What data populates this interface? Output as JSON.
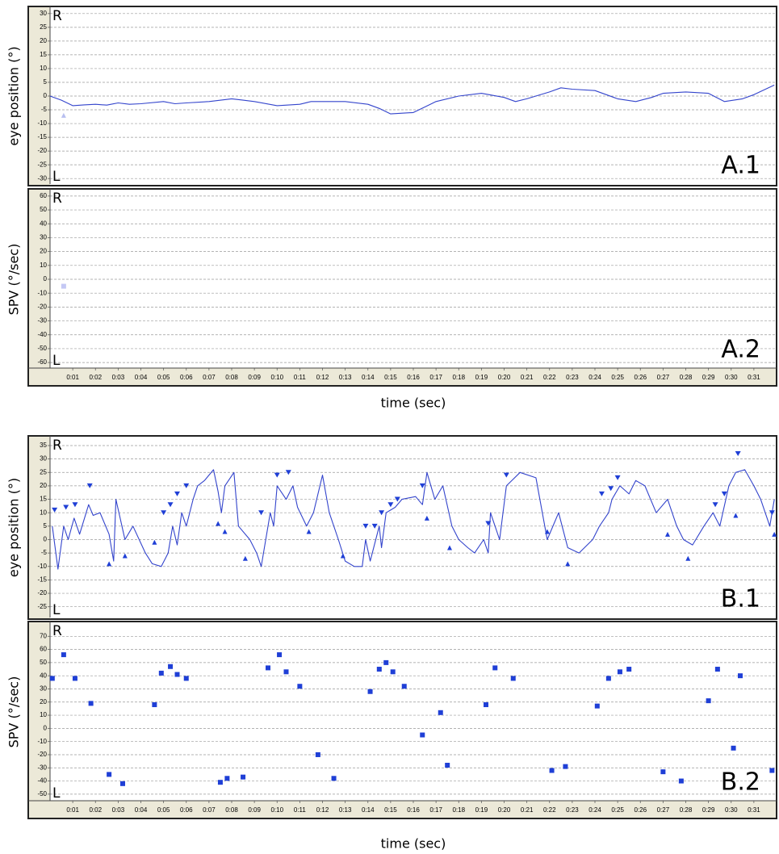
{
  "chart_data": [
    {
      "type": "line",
      "ylabel": "eye position (°)",
      "annotations": {
        "top": "R",
        "bottom": "L",
        "panel": "A.1"
      },
      "xlim": [
        0,
        32
      ],
      "ylim": [
        -32,
        32
      ],
      "yticks": [
        30,
        25,
        20,
        15,
        10,
        5,
        0,
        -5,
        -10,
        -15,
        -20,
        -25,
        -30
      ],
      "grid": true,
      "series": [
        {
          "style": "line",
          "color": "#3344cc",
          "x": [
            0,
            0.5,
            1,
            1.5,
            2,
            2.5,
            3,
            3.5,
            4,
            5,
            5.5,
            6,
            7,
            8,
            8.5,
            9,
            10,
            11,
            11.5,
            12,
            13,
            14,
            14.5,
            15,
            16,
            16.5,
            17,
            18,
            19,
            20,
            20.5,
            21,
            22,
            22.5,
            23,
            24,
            25,
            25.8,
            26.5,
            27,
            28,
            29,
            29.7,
            30.5,
            31,
            31.9
          ],
          "values": [
            0,
            -1.5,
            -3.5,
            -3.2,
            -3,
            -3.3,
            -2.5,
            -3,
            -2.8,
            -2,
            -2.8,
            -2.5,
            -2,
            -1,
            -1.5,
            -2,
            -3.5,
            -3,
            -2,
            -2,
            -2,
            -3,
            -4.5,
            -6.5,
            -6,
            -4,
            -2,
            0,
            1,
            -0.5,
            -2,
            -1,
            1.5,
            3,
            2.5,
            2,
            -1,
            -2,
            -0.5,
            1,
            1.5,
            1,
            -2,
            -1,
            0.5,
            4
          ]
        },
        {
          "style": "triangle-up",
          "color": "#b8bff0",
          "x": [
            0.6
          ],
          "values": [
            -7
          ]
        }
      ]
    },
    {
      "type": "scatter",
      "ylabel": "SPV (°/sec)",
      "xlabel": "time (sec)",
      "annotations": {
        "top": "R",
        "bottom": "L",
        "panel": "A.2"
      },
      "xlim": [
        0,
        32
      ],
      "ylim": [
        -64,
        64
      ],
      "yticks": [
        60,
        50,
        40,
        30,
        20,
        10,
        0,
        -10,
        -20,
        -30,
        -40,
        -50,
        -60
      ],
      "grid": true,
      "xticks": [
        {
          "value": 1,
          "label": "0:01"
        },
        {
          "value": 2,
          "label": "0:02"
        },
        {
          "value": 3,
          "label": "0:03"
        },
        {
          "value": 4,
          "label": "0:04"
        },
        {
          "value": 5,
          "label": "0:05"
        },
        {
          "value": 6,
          "label": "0:06"
        },
        {
          "value": 7,
          "label": "0:07"
        },
        {
          "value": 8,
          "label": "0:08"
        },
        {
          "value": 9,
          "label": "0:09"
        },
        {
          "value": 10,
          "label": "0:10"
        },
        {
          "value": 11,
          "label": "0:11"
        },
        {
          "value": 12,
          "label": "0:12"
        },
        {
          "value": 13,
          "label": "0:13"
        },
        {
          "value": 14,
          "label": "0:14"
        },
        {
          "value": 15,
          "label": "0:15"
        },
        {
          "value": 16,
          "label": "0:16"
        },
        {
          "value": 17,
          "label": "0:17"
        },
        {
          "value": 18,
          "label": "0:18"
        },
        {
          "value": 19,
          "label": "0:19"
        },
        {
          "value": 20,
          "label": "0:20"
        },
        {
          "value": 21,
          "label": "0:21"
        },
        {
          "value": 22,
          "label": "0:22"
        },
        {
          "value": 23,
          "label": "0:23"
        },
        {
          "value": 24,
          "label": "0:24"
        },
        {
          "value": 25,
          "label": "0:25"
        },
        {
          "value": 26,
          "label": "0:26"
        },
        {
          "value": 27,
          "label": "0:27"
        },
        {
          "value": 28,
          "label": "0:28"
        },
        {
          "value": 29,
          "label": "0:29"
        },
        {
          "value": 30,
          "label": "0:30"
        },
        {
          "value": 31,
          "label": "0:31"
        }
      ],
      "series": [
        {
          "style": "square",
          "color": "#c4c8f4",
          "x": [
            0.6
          ],
          "values": [
            -5
          ]
        }
      ]
    },
    {
      "type": "line",
      "ylabel": "eye position (°)",
      "annotations": {
        "top": "R",
        "bottom": "L",
        "panel": "B.1"
      },
      "xlim": [
        0,
        32
      ],
      "ylim": [
        -29,
        38
      ],
      "yticks": [
        35,
        30,
        25,
        20,
        15,
        10,
        5,
        0,
        -5,
        -10,
        -15,
        -20,
        -25
      ],
      "grid": true,
      "series": [
        {
          "style": "line",
          "color": "#3344cc",
          "x": [
            0.1,
            0.35,
            0.6,
            0.8,
            1.06,
            1.3,
            1.7,
            1.9,
            2.2,
            2.6,
            2.8,
            2.9,
            3.3,
            3.65,
            4.2,
            4.5,
            4.9,
            5.2,
            5.4,
            5.6,
            5.8,
            6,
            6.3,
            6.5,
            6.8,
            7.2,
            7.4,
            7.55,
            7.7,
            8.1,
            8.3,
            8.8,
            9.1,
            9.3,
            9.7,
            9.85,
            10,
            10.4,
            10.7,
            10.9,
            11.3,
            11.6,
            12,
            12.3,
            12.7,
            13,
            13.4,
            13.75,
            13.9,
            14.1,
            14.5,
            14.6,
            14.8,
            15.2,
            15.5,
            16.1,
            16.4,
            16.6,
            16.95,
            17.3,
            17.7,
            18,
            18.4,
            18.7,
            19.1,
            19.3,
            19.4,
            19.8,
            20.1,
            20.7,
            21.4,
            21.9,
            22.4,
            22.8,
            23.3,
            23.9,
            24.2,
            24.6,
            24.75,
            25.1,
            25.5,
            25.8,
            26.2,
            26.7,
            27.2,
            27.6,
            27.9,
            28.3,
            28.8,
            29.2,
            29.5,
            29.9,
            30.2,
            30.6,
            31,
            31.3,
            31.7,
            31.9
          ],
          "values": [
            5,
            -11,
            5,
            0,
            8,
            2,
            13,
            9,
            10,
            2,
            -8,
            15,
            0,
            5,
            -5,
            -9,
            -10,
            -5,
            5,
            -2,
            10,
            5,
            15,
            20,
            22,
            26,
            18,
            10,
            20,
            25,
            5,
            0,
            -5,
            -10,
            10,
            5,
            20,
            15,
            20,
            12,
            5,
            10,
            24,
            10,
            0,
            -8,
            -10,
            -10,
            0,
            -8,
            5,
            -3,
            10,
            12,
            15,
            16,
            13,
            25,
            15,
            20,
            5,
            0,
            -3,
            -5,
            0,
            -5,
            10,
            0,
            20,
            25,
            23,
            0,
            10,
            -3,
            -5,
            0,
            5,
            10,
            15,
            20,
            17,
            22,
            20,
            10,
            15,
            5,
            0,
            -2,
            5,
            10,
            5,
            20,
            25,
            26,
            20,
            15,
            5,
            15
          ]
        },
        {
          "style": "triangle-down",
          "color": "#1f3fd6",
          "x": [
            0.2,
            0.7,
            1.1,
            1.75,
            5,
            5.3,
            5.6,
            6,
            9.3,
            10,
            10.5,
            13.9,
            14.3,
            14.6,
            15,
            15.3,
            16.4,
            19.3,
            20.1,
            24.3,
            24.7,
            25,
            29.3,
            29.7,
            30.3,
            31.8
          ],
          "values": [
            11,
            12,
            13,
            20,
            10,
            13,
            17,
            20,
            10,
            24,
            25,
            5,
            5,
            10,
            13,
            15,
            20,
            6,
            24,
            17,
            19,
            23,
            13,
            17,
            32,
            10
          ]
        },
        {
          "style": "triangle-up",
          "color": "#1f3fd6",
          "x": [
            2.6,
            3.3,
            4.6,
            7.4,
            7.7,
            8.6,
            11.4,
            12.9,
            16.6,
            17.6,
            21.9,
            22.8,
            27.2,
            28.1,
            30.2,
            31.9
          ],
          "values": [
            -9,
            -6,
            -1,
            6,
            3,
            -7,
            3,
            -6,
            8,
            -3,
            3,
            -9,
            2,
            -7,
            9,
            2
          ]
        }
      ]
    },
    {
      "type": "scatter",
      "ylabel": "SPV (°/sec)",
      "xlabel": "time (sec)",
      "annotations": {
        "top": "R",
        "bottom": "L",
        "panel": "B.2"
      },
      "xlim": [
        0,
        32
      ],
      "ylim": [
        -55,
        80
      ],
      "yticks": [
        70,
        60,
        50,
        40,
        30,
        20,
        10,
        0,
        -10,
        -20,
        -30,
        -40,
        -50
      ],
      "grid": true,
      "xticks": [
        {
          "value": 1,
          "label": "0:01"
        },
        {
          "value": 2,
          "label": "0:02"
        },
        {
          "value": 3,
          "label": "0:03"
        },
        {
          "value": 4,
          "label": "0:04"
        },
        {
          "value": 5,
          "label": "0:05"
        },
        {
          "value": 6,
          "label": "0:06"
        },
        {
          "value": 7,
          "label": "0:07"
        },
        {
          "value": 8,
          "label": "0:08"
        },
        {
          "value": 9,
          "label": "0:09"
        },
        {
          "value": 10,
          "label": "0:10"
        },
        {
          "value": 11,
          "label": "0:11"
        },
        {
          "value": 12,
          "label": "0:12"
        },
        {
          "value": 13,
          "label": "0:13"
        },
        {
          "value": 14,
          "label": "0:14"
        },
        {
          "value": 15,
          "label": "0:15"
        },
        {
          "value": 16,
          "label": "0:16"
        },
        {
          "value": 17,
          "label": "0:17"
        },
        {
          "value": 18,
          "label": "0:18"
        },
        {
          "value": 19,
          "label": "0:19"
        },
        {
          "value": 20,
          "label": "0:20"
        },
        {
          "value": 21,
          "label": "0:21"
        },
        {
          "value": 22,
          "label": "0:22"
        },
        {
          "value": 23,
          "label": "0:23"
        },
        {
          "value": 24,
          "label": "0:24"
        },
        {
          "value": 25,
          "label": "0:25"
        },
        {
          "value": 26,
          "label": "0:26"
        },
        {
          "value": 27,
          "label": "0:27"
        },
        {
          "value": 28,
          "label": "0:28"
        },
        {
          "value": 29,
          "label": "0:29"
        },
        {
          "value": 30,
          "label": "0:30"
        },
        {
          "value": 31,
          "label": "0:31"
        }
      ],
      "series": [
        {
          "style": "square",
          "color": "#1f3fd6",
          "x": [
            0.1,
            0.6,
            1.1,
            1.8,
            2.6,
            3.2,
            4.6,
            4.9,
            5.3,
            5.6,
            6,
            7.5,
            7.8,
            8.5,
            9.6,
            10.1,
            10.4,
            11,
            11.8,
            12.5,
            14.1,
            14.5,
            14.8,
            15.1,
            15.6,
            16.4,
            17.2,
            17.5,
            19.2,
            19.6,
            20.4,
            22.1,
            22.7,
            24.1,
            24.6,
            25.1,
            25.5,
            27,
            27.8,
            29,
            29.4,
            30.1,
            30.4,
            31.8
          ],
          "values": [
            38,
            56,
            38,
            19,
            -35,
            -42,
            18,
            42,
            47,
            41,
            38,
            -41,
            -38,
            -37,
            46,
            56,
            43,
            32,
            -20,
            -38,
            28,
            45,
            50,
            43,
            32,
            -5,
            12,
            -28,
            18,
            46,
            38,
            -32,
            -29,
            17,
            38,
            43,
            45,
            -33,
            -40,
            21,
            45,
            -15,
            40,
            -32
          ]
        }
      ]
    }
  ]
}
